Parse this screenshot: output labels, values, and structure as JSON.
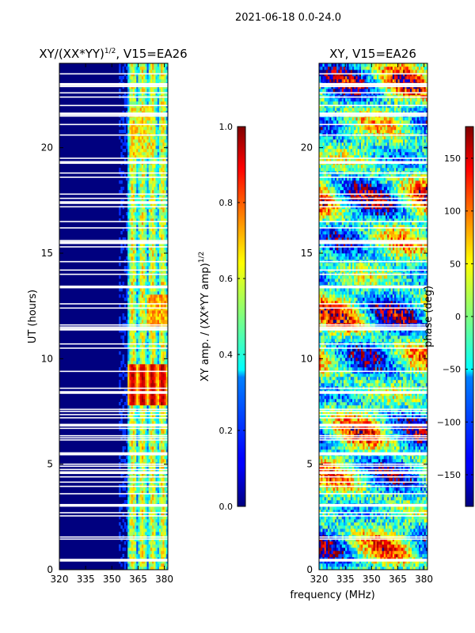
{
  "chart_data": [
    {
      "type": "heatmap",
      "suptitle": "2021-06-18 0.0-24.0",
      "title_main": "XY/(XX*YY)",
      "title_sup": "1/2",
      "title_rest": ", V15=EA26",
      "xlabel": "",
      "ylabel": "UT (hours)",
      "xlim": [
        320,
        382
      ],
      "ylim": [
        0,
        24
      ],
      "xticks": [
        320,
        335,
        350,
        365,
        380
      ],
      "yticks": [
        0,
        5,
        10,
        15,
        20
      ],
      "colormap": "jet",
      "description": "normalized XY amplitude vs frequency and UT; high values concentrated in 360-382 MHz band, peak ~0.9 near UT 8.5-9.5"
    },
    {
      "type": "colorbar",
      "label_main": "XY amp. / (XX*YY amp)",
      "label_sup": "1/2",
      "range": [
        0.0,
        1.0
      ],
      "ticks": [
        "0.0",
        "0.2",
        "0.4",
        "0.6",
        "0.8",
        "1.0"
      ],
      "tick_values": [
        0.0,
        0.2,
        0.4,
        0.6,
        0.8,
        1.0
      ]
    },
    {
      "type": "heatmap",
      "title": "XY, V15=EA26",
      "xlabel": "frequency (MHz)",
      "ylabel": "",
      "xlim": [
        320,
        382
      ],
      "ylim": [
        0,
        24
      ],
      "xticks": [
        320,
        335,
        350,
        365,
        380
      ],
      "yticks": [
        0,
        5,
        10,
        15,
        20
      ],
      "colormap": "jet",
      "description": "XY phase vs frequency and UT, mixed phases from -180 to 180 deg"
    },
    {
      "type": "colorbar",
      "label": "phase (deg)",
      "range": [
        -180,
        180
      ],
      "ticks": [
        "−150",
        "−100",
        "−50",
        "0",
        "50",
        "100",
        "150"
      ],
      "tick_values": [
        -150,
        -100,
        -50,
        0,
        50,
        100,
        150
      ]
    }
  ],
  "colors": {
    "jet_low": "#00007f",
    "jet_high": "#7f0000",
    "gap": "#ffffff",
    "axis": "#000000"
  }
}
